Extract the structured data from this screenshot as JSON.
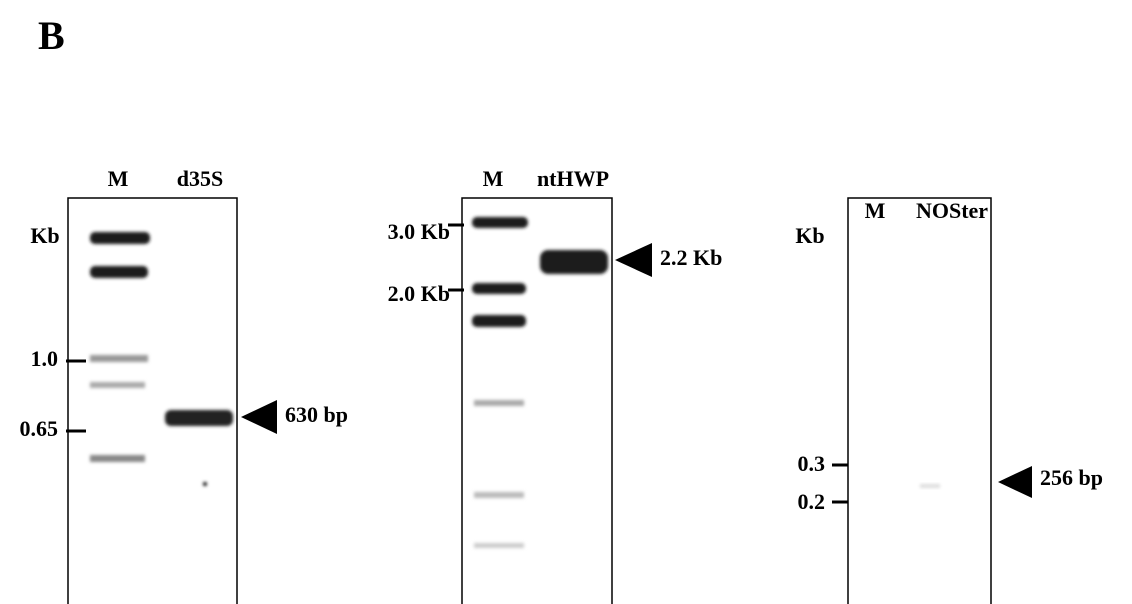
{
  "panel_label": "B",
  "gels": [
    {
      "lanes": [
        "M",
        "d35S"
      ],
      "unit": "Kb",
      "markers": [
        "1.0",
        "0.65"
      ],
      "band_label": "630 bp"
    },
    {
      "lanes": [
        "M",
        "ntHWP"
      ],
      "markers": [
        "3.0 Kb",
        "2.0 Kb"
      ],
      "band_label": "2.2 Kb"
    },
    {
      "lanes": [
        "M",
        "NOSter"
      ],
      "unit": "Kb",
      "markers": [
        "0.3",
        "0.2"
      ],
      "band_label": "256 bp"
    }
  ]
}
